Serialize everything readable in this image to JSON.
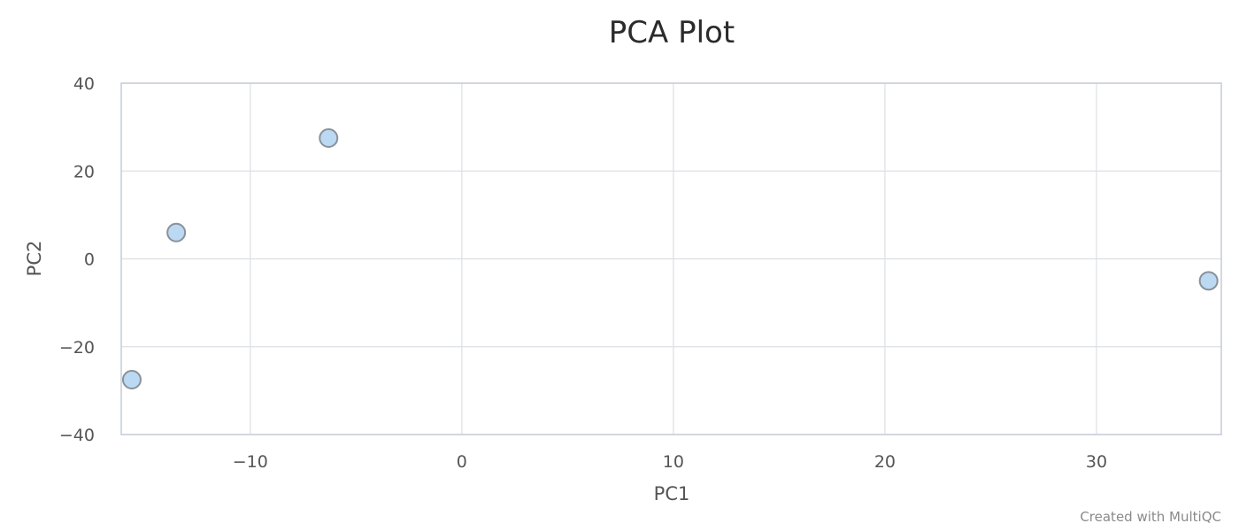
{
  "chart_data": {
    "type": "scatter",
    "title": "PCA Plot",
    "xlabel": "PC1",
    "ylabel": "PC2",
    "xlim": [
      -16.1,
      35.9
    ],
    "ylim": [
      -40,
      40
    ],
    "x_ticks": [
      -10,
      0,
      10,
      20,
      30
    ],
    "y_ticks": [
      -40,
      -20,
      0,
      20,
      40
    ],
    "x_tick_labels": [
      "−10",
      "0",
      "10",
      "20",
      "30"
    ],
    "y_tick_labels": [
      "−40",
      "−20",
      "0",
      "20",
      "40"
    ],
    "grid": true,
    "legend": "none",
    "point_color": "#bcd9f3",
    "point_edge_color": "#8a9199",
    "series": [
      {
        "points": [
          {
            "x": -15.6,
            "y": -27.5
          },
          {
            "x": -13.5,
            "y": 6.0
          },
          {
            "x": -6.3,
            "y": 27.5
          },
          {
            "x": 35.3,
            "y": -5.0
          }
        ]
      }
    ]
  },
  "credit": "Created with MultiQC"
}
